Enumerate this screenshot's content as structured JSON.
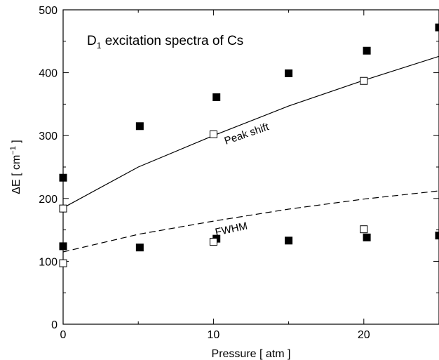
{
  "chart_data": {
    "type": "scatter",
    "title_main": "D",
    "title_sub": "1",
    "title_rest": " excitation spectra of Cs",
    "xlabel": "Pressure [ atm ]",
    "ylabel_main": "ΔE [ cm",
    "ylabel_sup": "−1",
    "ylabel_end": " ]",
    "xlim": [
      0,
      25
    ],
    "ylim": [
      0,
      500
    ],
    "x_ticks": [
      0,
      10,
      20
    ],
    "y_ticks": [
      0,
      100,
      200,
      300,
      400,
      500
    ],
    "series": [
      {
        "marker": "filled-square",
        "points": [
          {
            "x": 0,
            "y": 233
          },
          {
            "x": 5.1,
            "y": 315
          },
          {
            "x": 10.2,
            "y": 361
          },
          {
            "x": 15,
            "y": 399
          },
          {
            "x": 20.2,
            "y": 435
          },
          {
            "x": 25,
            "y": 472
          },
          {
            "x": 0,
            "y": 124
          },
          {
            "x": 5.1,
            "y": 122
          },
          {
            "x": 10.2,
            "y": 136
          },
          {
            "x": 15,
            "y": 133
          },
          {
            "x": 20.2,
            "y": 138
          },
          {
            "x": 25,
            "y": 141
          }
        ]
      },
      {
        "marker": "open-square",
        "points": [
          {
            "x": 0,
            "y": 184
          },
          {
            "x": 10,
            "y": 302
          },
          {
            "x": 20,
            "y": 387
          },
          {
            "x": 0,
            "y": 97
          },
          {
            "x": 10,
            "y": 131
          },
          {
            "x": 20,
            "y": 151
          }
        ]
      },
      {
        "name": "Peak shift",
        "line": "solid",
        "points": [
          {
            "x": 0,
            "y": 185
          },
          {
            "x": 5,
            "y": 250
          },
          {
            "x": 10,
            "y": 300
          },
          {
            "x": 15,
            "y": 347
          },
          {
            "x": 20,
            "y": 388
          },
          {
            "x": 25,
            "y": 426
          }
        ]
      },
      {
        "name": "FWHM",
        "line": "dashed",
        "points": [
          {
            "x": 0,
            "y": 115
          },
          {
            "x": 5,
            "y": 143
          },
          {
            "x": 10,
            "y": 164
          },
          {
            "x": 15,
            "y": 183
          },
          {
            "x": 20,
            "y": 199
          },
          {
            "x": 25,
            "y": 212
          }
        ]
      }
    ]
  }
}
